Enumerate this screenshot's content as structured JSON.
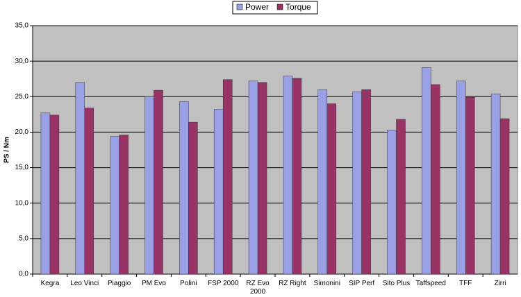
{
  "chart_data": {
    "type": "bar",
    "y_label": "PS / Nm",
    "categories": [
      "Kegra",
      "Leo Vinci",
      "Piaggio",
      "PM Evo",
      "Polini",
      "FSP 2000",
      "RZ Evo 2000",
      "RZ Right",
      "Simonini",
      "SIP Perf",
      "Sito Plus",
      "Taffspeed",
      "TFF",
      "Zirri"
    ],
    "series": [
      {
        "name": "Power",
        "color": "#9aa0e6",
        "values": [
          22.7,
          27.0,
          19.4,
          25.0,
          24.3,
          23.2,
          27.2,
          27.9,
          26.0,
          25.7,
          20.3,
          29.1,
          27.2,
          25.4
        ]
      },
      {
        "name": "Torque",
        "color": "#993366",
        "values": [
          22.4,
          23.4,
          19.6,
          25.9,
          21.4,
          27.4,
          27.0,
          27.6,
          24.0,
          26.0,
          21.8,
          26.7,
          24.9,
          21.9
        ]
      }
    ],
    "ylim": [
      0,
      35
    ],
    "yticks": [
      {
        "value": 0,
        "label": "0,0"
      },
      {
        "value": 5,
        "label": "5,0"
      },
      {
        "value": 10,
        "label": "10,0"
      },
      {
        "value": 15,
        "label": "15,0"
      },
      {
        "value": 20,
        "label": "20,0"
      },
      {
        "value": 25,
        "label": "25,0"
      },
      {
        "value": 30,
        "label": "30,0"
      },
      {
        "value": 35,
        "label": "35,0"
      }
    ],
    "grid": true,
    "legend": "top"
  }
}
